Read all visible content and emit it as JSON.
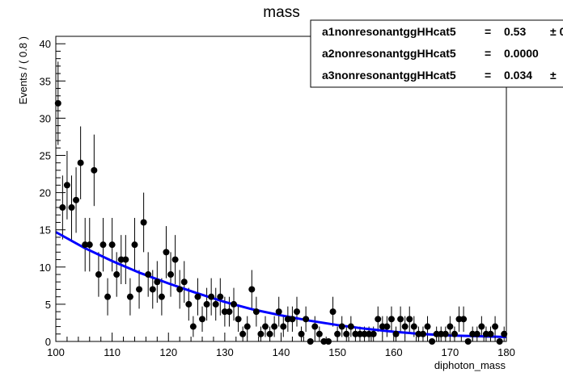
{
  "chart_data": {
    "type": "scatter",
    "title": "mass",
    "xlabel": "diphoton_mass",
    "ylabel": "Events / ( 0.8 )",
    "xlim": [
      100,
      180
    ],
    "ylim": [
      0,
      41
    ],
    "x_ticks": [
      "100",
      "110",
      "120",
      "130",
      "140",
      "150",
      "160",
      "170",
      "180"
    ],
    "y_ticks": [
      "0",
      "5",
      "10",
      "15",
      "20",
      "25",
      "30",
      "35",
      "40"
    ],
    "grid": false,
    "legend": "top-right",
    "params": [
      {
        "name": "a1nonresonantggHHcat5",
        "eq": "=",
        "value": "0.53",
        "err": "± 0"
      },
      {
        "name": "a2nonresonantggHHcat5",
        "eq": "=",
        "value": "0.0000",
        "err": ""
      },
      {
        "name": "a3nonresonantggHHcat5",
        "eq": "=",
        "value": "0.034",
        "err": "±"
      }
    ],
    "series": [
      {
        "name": "",
        "type": "points_with_errors",
        "color": "#000000",
        "x": [
          100.4,
          101.2,
          102.0,
          102.8,
          103.6,
          104.4,
          105.2,
          106.0,
          106.8,
          107.6,
          108.4,
          109.2,
          110.0,
          110.8,
          111.6,
          112.4,
          113.2,
          114.0,
          114.8,
          115.6,
          116.4,
          117.2,
          118.0,
          118.8,
          119.6,
          120.4,
          121.2,
          122.0,
          122.8,
          123.6,
          124.4,
          125.2,
          126.0,
          126.8,
          127.6,
          128.4,
          129.2,
          130.0,
          130.8,
          131.6,
          132.4,
          133.2,
          134.0,
          134.8,
          135.6,
          136.4,
          137.2,
          138.0,
          138.8,
          139.6,
          140.4,
          141.2,
          142.0,
          142.8,
          143.6,
          144.4,
          145.2,
          146.0,
          146.8,
          147.6,
          148.4,
          149.2,
          150.0,
          150.8,
          151.6,
          152.4,
          153.2,
          154.0,
          154.8,
          155.6,
          156.4,
          157.2,
          158.0,
          158.8,
          159.6,
          160.4,
          161.2,
          162.0,
          162.8,
          163.6,
          164.4,
          165.2,
          166.0,
          166.8,
          167.6,
          168.4,
          169.2,
          170.0,
          170.8,
          171.6,
          172.4,
          173.2,
          174.0,
          174.8,
          175.6,
          176.4,
          177.2,
          178.0,
          178.8,
          179.6
        ],
        "y": [
          32,
          18,
          21,
          18,
          19,
          24,
          13,
          13,
          23,
          9,
          13,
          6,
          13,
          9,
          11,
          11,
          6,
          13,
          7,
          16,
          9,
          7,
          8,
          6,
          12,
          9,
          11,
          7,
          8,
          5,
          2,
          6,
          3,
          5,
          6,
          5,
          6,
          4,
          4,
          5,
          3,
          1,
          2,
          7,
          4,
          1,
          2,
          1,
          2,
          4,
          2,
          3,
          3,
          4,
          1,
          3,
          0,
          2,
          1,
          0,
          0,
          4,
          1,
          2,
          1,
          2,
          1,
          1,
          1,
          1,
          1,
          3,
          2,
          2,
          3,
          1,
          3,
          2,
          3,
          2,
          1,
          1,
          2,
          0,
          1,
          1,
          1,
          2,
          1,
          3,
          3,
          0,
          1,
          1,
          2,
          1,
          1,
          2,
          0,
          1
        ],
        "y_err": [
          5.6,
          4.3,
          4.6,
          4.3,
          4.4,
          4.9,
          3.6,
          3.6,
          4.8,
          3.0,
          3.6,
          2.5,
          3.6,
          3.0,
          3.3,
          3.3,
          2.5,
          3.6,
          2.6,
          4.0,
          3.0,
          2.6,
          2.8,
          2.5,
          3.5,
          3.0,
          3.3,
          2.6,
          2.8,
          2.2,
          1.4,
          2.5,
          1.7,
          2.2,
          2.5,
          2.2,
          2.5,
          2.0,
          2.0,
          2.2,
          1.7,
          1.0,
          1.4,
          2.6,
          2.0,
          1.0,
          1.4,
          1.0,
          1.4,
          2.0,
          1.4,
          1.7,
          1.7,
          2.0,
          1.0,
          1.7,
          0.0,
          1.4,
          1.0,
          0.0,
          0.0,
          2.0,
          1.0,
          1.4,
          1.0,
          1.4,
          1.0,
          1.0,
          1.0,
          1.0,
          1.0,
          1.7,
          1.4,
          1.4,
          1.7,
          1.0,
          1.7,
          1.4,
          1.7,
          1.4,
          1.0,
          1.0,
          1.4,
          0.0,
          1.0,
          1.0,
          1.0,
          1.4,
          1.0,
          1.7,
          1.7,
          0.0,
          1.0,
          1.0,
          1.4,
          1.0,
          1.0,
          1.4,
          0.0,
          1.0
        ]
      },
      {
        "name": "",
        "type": "fit_curve",
        "color": "#0000ff",
        "x": [
          100,
          105,
          110,
          115,
          120,
          125,
          130,
          135,
          140,
          145,
          150,
          155,
          160,
          165,
          170,
          175,
          180
        ],
        "y": [
          14.7,
          12.6,
          10.8,
          9.2,
          7.8,
          6.5,
          5.3,
          4.3,
          3.5,
          2.8,
          2.2,
          1.7,
          1.3,
          1.0,
          0.8,
          0.7,
          0.6
        ]
      }
    ]
  }
}
